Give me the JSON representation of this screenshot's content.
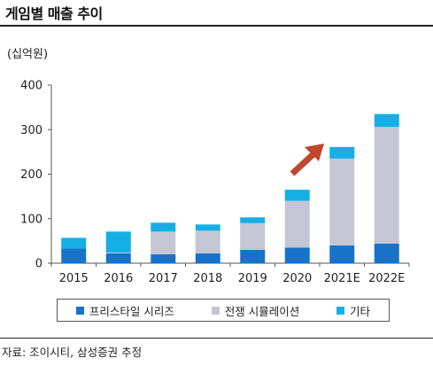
{
  "title": "게임별 매출 추이",
  "unit_label": "(십억원)",
  "source": "자료: 조이시티, 삼성증권 추정",
  "colors": {
    "freestyle": "#1673c9",
    "warsim": "#c4c6d3",
    "other": "#17aee6",
    "arrow": "#c0472e",
    "axis": "#555555"
  },
  "chart_data": {
    "type": "bar",
    "stacked": true,
    "categories": [
      "2015",
      "2016",
      "2017",
      "2018",
      "2019",
      "2020",
      "2021E",
      "2022E"
    ],
    "series": [
      {
        "name": "프리스타일 시리즈",
        "color_key": "freestyle",
        "values": [
          33,
          22,
          20,
          22,
          30,
          35,
          40,
          44
        ]
      },
      {
        "name": "전쟁 시뮬레이션",
        "color_key": "warsim",
        "values": [
          0,
          2,
          51,
          51,
          60,
          105,
          195,
          262
        ]
      },
      {
        "name": "기타",
        "color_key": "other",
        "values": [
          24,
          47,
          20,
          14,
          13,
          25,
          26,
          29
        ]
      }
    ],
    "ylim": [
      0,
      400
    ],
    "yticks": [
      0,
      100,
      200,
      300,
      400
    ],
    "legend_position": "bottom",
    "annotation": "arrow pointing up-right toward 2021E"
  }
}
